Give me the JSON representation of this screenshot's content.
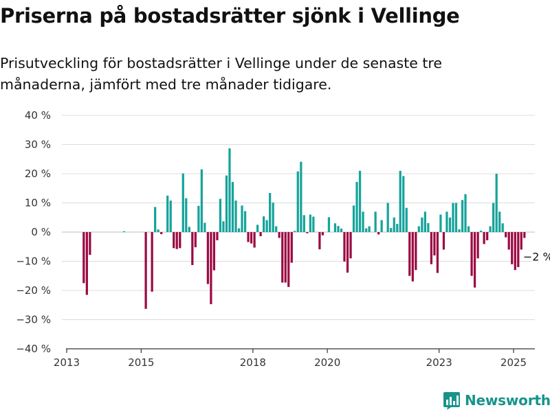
{
  "title": "Priserna på bostadsrätter sjönk i Vellinge",
  "subtitle": "Prisutveckling för bostadsrätter i Vellinge under de senaste tre månaderna, jämfört med tre månader tidigare.",
  "brand": {
    "name": "Newsworthy",
    "icon": "newsworthy-chart-logo-icon"
  },
  "colors": {
    "positive": "#16a39c",
    "negative": "#9b0b43",
    "grid": "#dcdcdc",
    "axis": "#333333",
    "brand": "#17938b"
  },
  "chart_data": {
    "type": "bar",
    "title": "Priserna på bostadsrätter sjönk i Vellinge",
    "subtitle": "Prisutveckling för bostadsrätter i Vellinge under de senaste tre månaderna, jämfört med tre månader tidigare.",
    "x_unit": "decimal year (month centers)",
    "x_range": [
      2012.9,
      2025.7
    ],
    "xticks": [
      {
        "value": 2013,
        "label": "2013"
      },
      {
        "value": 2015,
        "label": "2015"
      },
      {
        "value": 2018,
        "label": "2018"
      },
      {
        "value": 2020,
        "label": "2020"
      },
      {
        "value": 2023,
        "label": "2023"
      },
      {
        "value": 2025,
        "label": "2025"
      }
    ],
    "ylim": [
      -40,
      40
    ],
    "yticks": [
      {
        "value": 40,
        "label": "40 %"
      },
      {
        "value": 30,
        "label": "30 %"
      },
      {
        "value": 20,
        "label": "20 %"
      },
      {
        "value": 10,
        "label": "10 %"
      },
      {
        "value": 0,
        "label": "0 %"
      },
      {
        "value": -10,
        "label": "−10 %"
      },
      {
        "value": -20,
        "label": "−20 %"
      },
      {
        "value": -30,
        "label": "−30 %"
      },
      {
        "value": -40,
        "label": "−40 %"
      }
    ],
    "grid": true,
    "legend": "none",
    "annotation": {
      "x": 2025.625,
      "y": -2,
      "label": "−2 %"
    },
    "series": [
      {
        "values": [
          [
            2013.458,
            -17.5
          ],
          [
            2013.542,
            -21.5
          ],
          [
            2013.625,
            -7.8
          ],
          [
            2014.542,
            0.3
          ],
          [
            2015.125,
            -26.3
          ],
          [
            2015.292,
            -20.4
          ],
          [
            2015.375,
            8.6
          ],
          [
            2015.458,
            0.9
          ],
          [
            2015.542,
            -0.7
          ],
          [
            2015.708,
            12.5
          ],
          [
            2015.792,
            10.8
          ],
          [
            2015.875,
            -5.5
          ],
          [
            2015.958,
            -5.8
          ],
          [
            2016.042,
            -5.5
          ],
          [
            2016.125,
            20.1
          ],
          [
            2016.208,
            11.6
          ],
          [
            2016.292,
            1.8
          ],
          [
            2016.375,
            -11.3
          ],
          [
            2016.458,
            -5.2
          ],
          [
            2016.542,
            9.0
          ],
          [
            2016.625,
            21.5
          ],
          [
            2016.708,
            3.2
          ],
          [
            2016.792,
            -17.8
          ],
          [
            2016.875,
            -24.7
          ],
          [
            2016.958,
            -13.1
          ],
          [
            2017.042,
            -2.8
          ],
          [
            2017.125,
            11.4
          ],
          [
            2017.208,
            3.7
          ],
          [
            2017.292,
            19.4
          ],
          [
            2017.375,
            28.7
          ],
          [
            2017.458,
            17.2
          ],
          [
            2017.542,
            10.8
          ],
          [
            2017.625,
            1.3
          ],
          [
            2017.708,
            9.1
          ],
          [
            2017.792,
            7.2
          ],
          [
            2017.875,
            -3.4
          ],
          [
            2017.958,
            -3.9
          ],
          [
            2018.042,
            -5.3
          ],
          [
            2018.125,
            2.5
          ],
          [
            2018.208,
            -1.4
          ],
          [
            2018.292,
            5.4
          ],
          [
            2018.375,
            4.1
          ],
          [
            2018.458,
            13.4
          ],
          [
            2018.542,
            10.1
          ],
          [
            2018.625,
            2.0
          ],
          [
            2018.708,
            -2.0
          ],
          [
            2018.792,
            -17.3
          ],
          [
            2018.875,
            -17.3
          ],
          [
            2018.958,
            -18.8
          ],
          [
            2019.042,
            -10.5
          ],
          [
            2019.125,
            0.4
          ],
          [
            2019.208,
            20.8
          ],
          [
            2019.292,
            24.1
          ],
          [
            2019.375,
            5.8
          ],
          [
            2019.458,
            -0.4
          ],
          [
            2019.542,
            6.0
          ],
          [
            2019.625,
            5.3
          ],
          [
            2019.792,
            -5.9
          ],
          [
            2019.875,
            -1.1
          ],
          [
            2020.042,
            5.1
          ],
          [
            2020.208,
            3.0
          ],
          [
            2020.292,
            2.1
          ],
          [
            2020.375,
            1.2
          ],
          [
            2020.458,
            -10.1
          ],
          [
            2020.542,
            -13.9
          ],
          [
            2020.625,
            -9.0
          ],
          [
            2020.708,
            9.1
          ],
          [
            2020.792,
            17.2
          ],
          [
            2020.875,
            21.0
          ],
          [
            2020.958,
            7.0
          ],
          [
            2021.042,
            1.3
          ],
          [
            2021.125,
            2.0
          ],
          [
            2021.292,
            7.0
          ],
          [
            2021.375,
            -0.8
          ],
          [
            2021.458,
            4.1
          ],
          [
            2021.625,
            10.0
          ],
          [
            2021.708,
            1.4
          ],
          [
            2021.792,
            5.0
          ],
          [
            2021.875,
            2.8
          ],
          [
            2021.958,
            21.0
          ],
          [
            2022.042,
            19.2
          ],
          [
            2022.125,
            8.3
          ],
          [
            2022.208,
            -15.0
          ],
          [
            2022.292,
            -16.9
          ],
          [
            2022.375,
            -13.0
          ],
          [
            2022.458,
            2.0
          ],
          [
            2022.542,
            5.0
          ],
          [
            2022.625,
            7.0
          ],
          [
            2022.708,
            3.1
          ],
          [
            2022.792,
            -11.0
          ],
          [
            2022.875,
            -8.0
          ],
          [
            2022.958,
            -14.0
          ],
          [
            2023.042,
            6.0
          ],
          [
            2023.125,
            -6.0
          ],
          [
            2023.208,
            7.0
          ],
          [
            2023.292,
            5.0
          ],
          [
            2023.375,
            10.0
          ],
          [
            2023.458,
            10.0
          ],
          [
            2023.542,
            1.0
          ],
          [
            2023.625,
            11.0
          ],
          [
            2023.708,
            13.0
          ],
          [
            2023.792,
            2.0
          ],
          [
            2023.875,
            -15.0
          ],
          [
            2023.958,
            -19.0
          ],
          [
            2024.042,
            -9.0
          ],
          [
            2024.125,
            0.5
          ],
          [
            2024.208,
            -4.1
          ],
          [
            2024.292,
            -2.8
          ],
          [
            2024.375,
            2.0
          ],
          [
            2024.458,
            10.0
          ],
          [
            2024.542,
            20.0
          ],
          [
            2024.625,
            7.0
          ],
          [
            2024.708,
            3.0
          ],
          [
            2024.792,
            -1.8
          ],
          [
            2024.875,
            -6.0
          ],
          [
            2024.958,
            -11.0
          ],
          [
            2025.042,
            -13.0
          ],
          [
            2025.125,
            -12.0
          ],
          [
            2025.208,
            -6.0
          ],
          [
            2025.292,
            -2.0
          ]
        ]
      }
    ]
  }
}
